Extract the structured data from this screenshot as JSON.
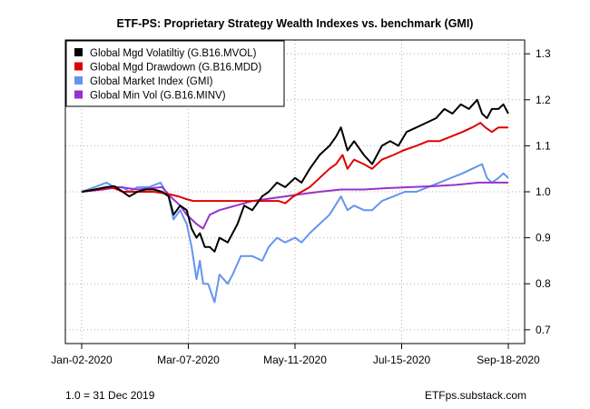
{
  "chart_data": {
    "type": "line",
    "title": "ETF-PS: Proprietary Strategy Wealth Indexes vs. benchmark (GMI)",
    "xlabel": "",
    "ylabel": "",
    "x_range": [
      "2020-01-02",
      "2020-09-18"
    ],
    "x_ticks": [
      {
        "date": "2020-01-02",
        "label": "Jan-02-2020"
      },
      {
        "date": "2020-03-07",
        "label": "Mar-07-2020"
      },
      {
        "date": "2020-05-11",
        "label": "May-11-2020"
      },
      {
        "date": "2020-07-15",
        "label": "Jul-15-2020"
      },
      {
        "date": "2020-09-18",
        "label": "Sep-18-2020"
      }
    ],
    "ylim": [
      0.67,
      1.33
    ],
    "y_ticks": [
      0.7,
      0.8,
      0.9,
      1.0,
      1.1,
      1.2,
      1.3
    ],
    "y_tick_labels": [
      "0.7",
      "0.8",
      "0.9",
      "1.0",
      "1.1",
      "1.2",
      "1.3"
    ],
    "y_axis_side": "right",
    "grid": true,
    "legend_position": "top-left",
    "series": [
      {
        "name": "Global Mgd Volatiltiy (G.B16.MVOL)",
        "color": "#000000",
        "points": [
          [
            "2020-01-02",
            1.0
          ],
          [
            "2020-01-10",
            1.005
          ],
          [
            "2020-01-17",
            1.01
          ],
          [
            "2020-01-22",
            1.012
          ],
          [
            "2020-01-27",
            1.0
          ],
          [
            "2020-01-31",
            0.99
          ],
          [
            "2020-02-05",
            1.0
          ],
          [
            "2020-02-10",
            1.005
          ],
          [
            "2020-02-15",
            1.005
          ],
          [
            "2020-02-20",
            1.0
          ],
          [
            "2020-02-24",
            0.99
          ],
          [
            "2020-02-27",
            0.95
          ],
          [
            "2020-03-02",
            0.97
          ],
          [
            "2020-03-06",
            0.96
          ],
          [
            "2020-03-09",
            0.92
          ],
          [
            "2020-03-12",
            0.9
          ],
          [
            "2020-03-14",
            0.91
          ],
          [
            "2020-03-17",
            0.88
          ],
          [
            "2020-03-20",
            0.88
          ],
          [
            "2020-03-23",
            0.87
          ],
          [
            "2020-03-26",
            0.9
          ],
          [
            "2020-03-31",
            0.89
          ],
          [
            "2020-04-06",
            0.93
          ],
          [
            "2020-04-10",
            0.97
          ],
          [
            "2020-04-15",
            0.96
          ],
          [
            "2020-04-21",
            0.99
          ],
          [
            "2020-04-25",
            1.0
          ],
          [
            "2020-04-30",
            1.02
          ],
          [
            "2020-05-05",
            1.01
          ],
          [
            "2020-05-11",
            1.03
          ],
          [
            "2020-05-15",
            1.02
          ],
          [
            "2020-05-20",
            1.05
          ],
          [
            "2020-05-26",
            1.08
          ],
          [
            "2020-06-01",
            1.1
          ],
          [
            "2020-06-05",
            1.12
          ],
          [
            "2020-06-08",
            1.14
          ],
          [
            "2020-06-12",
            1.09
          ],
          [
            "2020-06-16",
            1.11
          ],
          [
            "2020-06-22",
            1.08
          ],
          [
            "2020-06-27",
            1.06
          ],
          [
            "2020-07-03",
            1.1
          ],
          [
            "2020-07-08",
            1.11
          ],
          [
            "2020-07-13",
            1.1
          ],
          [
            "2020-07-18",
            1.13
          ],
          [
            "2020-07-24",
            1.14
          ],
          [
            "2020-07-30",
            1.15
          ],
          [
            "2020-08-05",
            1.16
          ],
          [
            "2020-08-10",
            1.18
          ],
          [
            "2020-08-15",
            1.17
          ],
          [
            "2020-08-20",
            1.19
          ],
          [
            "2020-08-25",
            1.18
          ],
          [
            "2020-08-30",
            1.2
          ],
          [
            "2020-09-02",
            1.17
          ],
          [
            "2020-09-05",
            1.16
          ],
          [
            "2020-09-08",
            1.18
          ],
          [
            "2020-09-12",
            1.18
          ],
          [
            "2020-09-15",
            1.19
          ],
          [
            "2020-09-18",
            1.17
          ]
        ]
      },
      {
        "name": "Global Mgd Drawdown (G.B16.MDD)",
        "color": "#e00000",
        "points": [
          [
            "2020-01-02",
            1.0
          ],
          [
            "2020-01-12",
            1.005
          ],
          [
            "2020-01-20",
            1.01
          ],
          [
            "2020-01-27",
            1.0
          ],
          [
            "2020-02-05",
            1.0
          ],
          [
            "2020-02-15",
            1.0
          ],
          [
            "2020-02-24",
            0.995
          ],
          [
            "2020-03-01",
            0.99
          ],
          [
            "2020-03-05",
            0.985
          ],
          [
            "2020-03-10",
            0.98
          ],
          [
            "2020-03-20",
            0.98
          ],
          [
            "2020-04-01",
            0.98
          ],
          [
            "2020-04-15",
            0.98
          ],
          [
            "2020-04-25",
            0.98
          ],
          [
            "2020-05-01",
            0.98
          ],
          [
            "2020-05-05",
            0.975
          ],
          [
            "2020-05-10",
            0.99
          ],
          [
            "2020-05-15",
            1.0
          ],
          [
            "2020-05-20",
            1.01
          ],
          [
            "2020-05-26",
            1.03
          ],
          [
            "2020-06-01",
            1.05
          ],
          [
            "2020-06-05",
            1.06
          ],
          [
            "2020-06-09",
            1.08
          ],
          [
            "2020-06-12",
            1.05
          ],
          [
            "2020-06-16",
            1.07
          ],
          [
            "2020-06-22",
            1.06
          ],
          [
            "2020-06-27",
            1.05
          ],
          [
            "2020-07-03",
            1.07
          ],
          [
            "2020-07-10",
            1.08
          ],
          [
            "2020-07-16",
            1.09
          ],
          [
            "2020-07-24",
            1.1
          ],
          [
            "2020-07-31",
            1.11
          ],
          [
            "2020-08-07",
            1.11
          ],
          [
            "2020-08-14",
            1.12
          ],
          [
            "2020-08-21",
            1.13
          ],
          [
            "2020-08-27",
            1.14
          ],
          [
            "2020-09-01",
            1.15
          ],
          [
            "2020-09-04",
            1.14
          ],
          [
            "2020-09-08",
            1.13
          ],
          [
            "2020-09-12",
            1.14
          ],
          [
            "2020-09-18",
            1.14
          ]
        ]
      },
      {
        "name": "Global Market Index (GMI)",
        "color": "#6495ed",
        "points": [
          [
            "2020-01-02",
            1.0
          ],
          [
            "2020-01-10",
            1.01
          ],
          [
            "2020-01-17",
            1.02
          ],
          [
            "2020-01-22",
            1.01
          ],
          [
            "2020-01-27",
            1.01
          ],
          [
            "2020-01-31",
            1.0
          ],
          [
            "2020-02-05",
            1.01
          ],
          [
            "2020-02-12",
            1.01
          ],
          [
            "2020-02-19",
            1.02
          ],
          [
            "2020-02-24",
            0.99
          ],
          [
            "2020-02-27",
            0.94
          ],
          [
            "2020-03-02",
            0.96
          ],
          [
            "2020-03-06",
            0.93
          ],
          [
            "2020-03-09",
            0.88
          ],
          [
            "2020-03-12",
            0.81
          ],
          [
            "2020-03-14",
            0.85
          ],
          [
            "2020-03-16",
            0.8
          ],
          [
            "2020-03-19",
            0.8
          ],
          [
            "2020-03-23",
            0.76
          ],
          [
            "2020-03-26",
            0.82
          ],
          [
            "2020-03-31",
            0.8
          ],
          [
            "2020-04-03",
            0.82
          ],
          [
            "2020-04-08",
            0.86
          ],
          [
            "2020-04-15",
            0.86
          ],
          [
            "2020-04-21",
            0.85
          ],
          [
            "2020-04-25",
            0.88
          ],
          [
            "2020-04-30",
            0.9
          ],
          [
            "2020-05-05",
            0.89
          ],
          [
            "2020-05-11",
            0.9
          ],
          [
            "2020-05-15",
            0.89
          ],
          [
            "2020-05-20",
            0.91
          ],
          [
            "2020-05-26",
            0.93
          ],
          [
            "2020-06-01",
            0.95
          ],
          [
            "2020-06-08",
            0.99
          ],
          [
            "2020-06-12",
            0.96
          ],
          [
            "2020-06-16",
            0.97
          ],
          [
            "2020-06-22",
            0.96
          ],
          [
            "2020-06-27",
            0.96
          ],
          [
            "2020-07-03",
            0.98
          ],
          [
            "2020-07-10",
            0.99
          ],
          [
            "2020-07-17",
            1.0
          ],
          [
            "2020-07-24",
            1.0
          ],
          [
            "2020-07-31",
            1.01
          ],
          [
            "2020-08-07",
            1.02
          ],
          [
            "2020-08-14",
            1.03
          ],
          [
            "2020-08-21",
            1.04
          ],
          [
            "2020-08-27",
            1.05
          ],
          [
            "2020-09-02",
            1.06
          ],
          [
            "2020-09-05",
            1.03
          ],
          [
            "2020-09-08",
            1.02
          ],
          [
            "2020-09-12",
            1.03
          ],
          [
            "2020-09-15",
            1.04
          ],
          [
            "2020-09-18",
            1.03
          ]
        ]
      },
      {
        "name": "Global Min Vol (G.B16.MINV)",
        "color": "#9932cc",
        "points": [
          [
            "2020-01-02",
            1.0
          ],
          [
            "2020-01-15",
            1.005
          ],
          [
            "2020-01-25",
            1.01
          ],
          [
            "2020-02-05",
            1.005
          ],
          [
            "2020-02-20",
            1.01
          ],
          [
            "2020-02-25",
            0.99
          ],
          [
            "2020-03-02",
            0.97
          ],
          [
            "2020-03-06",
            0.95
          ],
          [
            "2020-03-12",
            0.93
          ],
          [
            "2020-03-16",
            0.92
          ],
          [
            "2020-03-20",
            0.95
          ],
          [
            "2020-03-26",
            0.96
          ],
          [
            "2020-04-05",
            0.97
          ],
          [
            "2020-04-15",
            0.98
          ],
          [
            "2020-04-25",
            0.985
          ],
          [
            "2020-05-05",
            0.99
          ],
          [
            "2020-05-15",
            0.995
          ],
          [
            "2020-05-26",
            1.0
          ],
          [
            "2020-06-08",
            1.005
          ],
          [
            "2020-06-22",
            1.005
          ],
          [
            "2020-07-06",
            1.008
          ],
          [
            "2020-07-20",
            1.01
          ],
          [
            "2020-08-03",
            1.012
          ],
          [
            "2020-08-17",
            1.015
          ],
          [
            "2020-08-31",
            1.02
          ],
          [
            "2020-09-10",
            1.02
          ],
          [
            "2020-09-18",
            1.02
          ]
        ]
      }
    ]
  },
  "notes": {
    "baseline": "1.0 = 31 Dec 2019",
    "source": "ETFps.substack.com"
  }
}
